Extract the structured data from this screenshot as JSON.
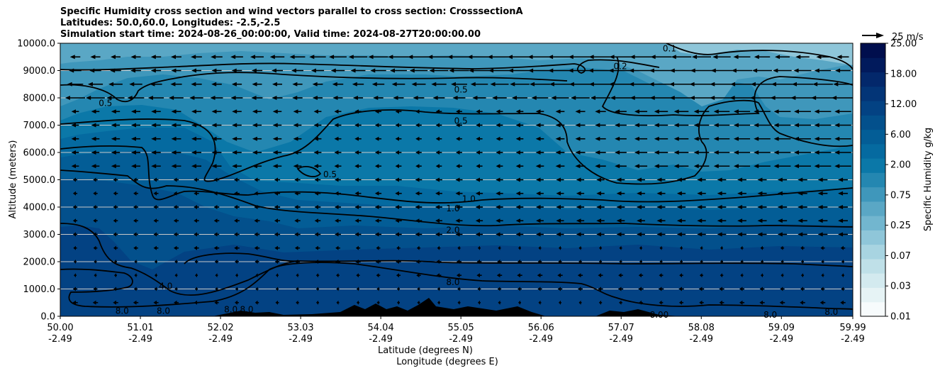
{
  "title": {
    "line1": "Specific Humidity cross section and wind vectors parallel to cross section: CrosssectionA",
    "line2": "Latitudes: 50.0,60.0, Longitudes: -2.5,-2.5",
    "line3": "Simulation start time: 2024-08-26_00:00:00, Valid time: 2024-08-27T20:00:00.00"
  },
  "chart_data": {
    "type": "heatmap",
    "subtype": "filled-contour cross section with wind vectors",
    "ylabel": "Altitude (meters)",
    "xlabel_line1": "Latitude (degrees N)",
    "xlabel_line2": "Longitude (degrees E)",
    "ylim": [
      0,
      10000
    ],
    "yticks": [
      "0.0",
      "1000.0",
      "2000.0",
      "3000.0",
      "4000.0",
      "5000.0",
      "6000.0",
      "7000.0",
      "8000.0",
      "9000.0",
      "10000.0"
    ],
    "ytick_values": [
      0,
      1000,
      2000,
      3000,
      4000,
      5000,
      6000,
      7000,
      8000,
      9000,
      10000
    ],
    "xlim": [
      50.0,
      59.99
    ],
    "xtick_values": [
      50.0,
      51.01,
      52.02,
      53.03,
      54.04,
      55.05,
      56.06,
      57.07,
      58.08,
      59.09,
      59.99
    ],
    "xticks_lat": [
      "50.00",
      "51.01",
      "52.02",
      "53.03",
      "54.04",
      "55.05",
      "56.06",
      "57.07",
      "58.08",
      "59.09",
      "59.99"
    ],
    "xticks_lon": [
      "-2.49",
      "-2.49",
      "-2.49",
      "-2.49",
      "-2.49",
      "-2.49",
      "-2.49",
      "-2.49",
      "-2.49",
      "-2.49",
      "-2.49"
    ],
    "grid": "horizontal",
    "colorbar": {
      "label": "Specific Humidity g/kg",
      "ticks": [
        "0.01",
        "0.03",
        "0.07",
        "0.25",
        "0.75",
        "2.00",
        "6.00",
        "12.00",
        "18.00",
        "25.00"
      ],
      "colors": [
        "#f7fbfc",
        "#e6f3f5",
        "#d3eaef",
        "#bfe0e8",
        "#a8d4e1",
        "#8fc6d9",
        "#72b6cf",
        "#5aa7c5",
        "#3f97bb",
        "#2487b1",
        "#0b78a8",
        "#056aa0",
        "#035d96",
        "#03508c",
        "#034283",
        "#033577",
        "#03286b",
        "#011a5c",
        "#000e4d"
      ]
    },
    "quiver_key": "25 m/s",
    "contour_labels": [
      {
        "text": "0.1",
        "x": 57.68,
        "y": 9800
      },
      {
        "text": "0.2",
        "x": 57.06,
        "y": 9150
      },
      {
        "text": "0.5",
        "x": 50.57,
        "y": 7800
      },
      {
        "text": "0.5",
        "x": 55.05,
        "y": 8300
      },
      {
        "text": "0.5",
        "x": 55.05,
        "y": 7150
      },
      {
        "text": "0.5",
        "x": 53.4,
        "y": 5200
      },
      {
        "text": "1.0",
        "x": 55.15,
        "y": 4300
      },
      {
        "text": "1.0",
        "x": 54.95,
        "y": 3950
      },
      {
        "text": "2.0",
        "x": 54.95,
        "y": 3150
      },
      {
        "text": "4.0",
        "x": 51.33,
        "y": 1100
      },
      {
        "text": "8.0",
        "x": 54.95,
        "y": 1250
      },
      {
        "text": "8.0",
        "x": 50.78,
        "y": 200
      },
      {
        "text": "8.0",
        "x": 51.3,
        "y": 200
      },
      {
        "text": "8.0",
        "x": 52.15,
        "y": 250
      },
      {
        "text": "8.0",
        "x": 52.35,
        "y": 250
      },
      {
        "text": "8.00",
        "x": 57.55,
        "y": 50
      },
      {
        "text": "8.0",
        "x": 58.95,
        "y": 50
      },
      {
        "text": "8.0",
        "x": 59.72,
        "y": 150
      }
    ]
  }
}
